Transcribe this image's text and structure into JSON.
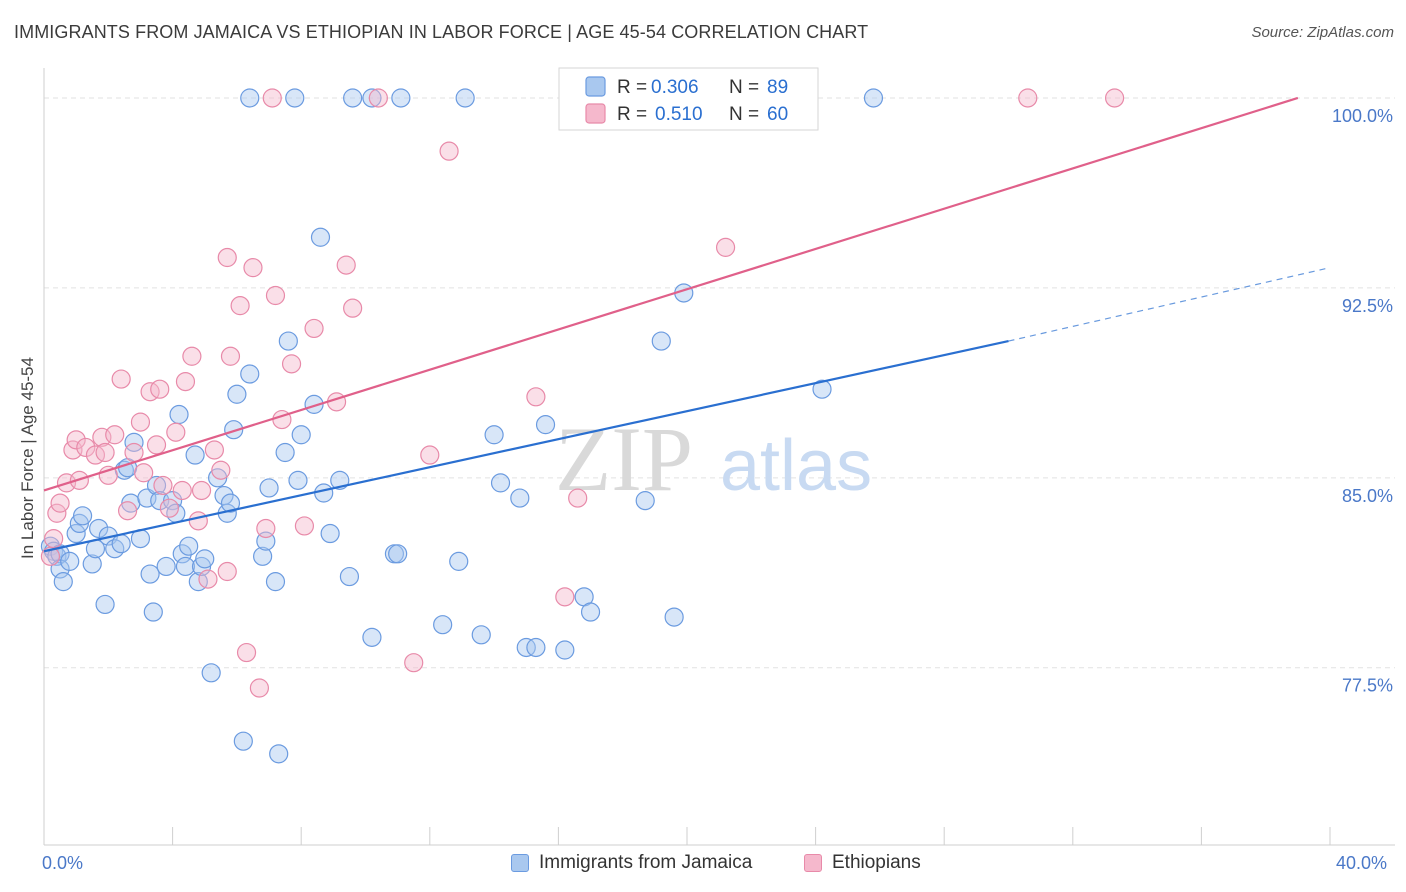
{
  "title": "IMMIGRANTS FROM JAMAICA VS ETHIOPIAN IN LABOR FORCE | AGE 45-54 CORRELATION CHART",
  "source": "Source: ZipAtlas.com",
  "watermark": {
    "zip": "ZIP",
    "atlas": "atlas"
  },
  "colors": {
    "blue_fill": "#a9c8ef",
    "blue_stroke": "#6b9be0",
    "blue_line": "#2a6fd0",
    "pink_fill": "#f5b8cc",
    "pink_stroke": "#e88aa9",
    "pink_line": "#e0608a",
    "axis_text": "#4a78c8",
    "grid": "#dddddd"
  },
  "legend_top": {
    "rows": [
      {
        "r_label": "R =",
        "r_value": "0.306",
        "n_label": "N =",
        "n_value": "89"
      },
      {
        "r_label": "R =",
        "r_value": "0.510",
        "n_label": "N =",
        "n_value": "60"
      }
    ]
  },
  "chart_data": {
    "type": "scatter",
    "title": "IMMIGRANTS FROM JAMAICA VS ETHIOPIAN IN LABOR FORCE | AGE 45-54 CORRELATION CHART",
    "xlabel": "",
    "ylabel": "In Labor Force | Age 45-54",
    "xlim": [
      0,
      40
    ],
    "ylim": [
      70.5,
      101.5
    ],
    "x_tick_labels": [
      "0.0%",
      "40.0%"
    ],
    "y_ticks": [
      77.5,
      85.0,
      92.5,
      100.0
    ],
    "y_tick_labels": [
      "77.5%",
      "85.0%",
      "92.5%",
      "100.0%"
    ],
    "grid": true,
    "legend_position": "top-center",
    "series": [
      {
        "name": "Immigrants from Jamaica",
        "color": "#a9c8ef",
        "trend": {
          "x": [
            0,
            30.0
          ],
          "y": [
            82.1,
            90.4
          ],
          "dashed_to": [
            40.0,
            93.3
          ]
        },
        "points": [
          [
            0.2,
            82.3
          ],
          [
            0.3,
            82.1
          ],
          [
            0.4,
            81.9
          ],
          [
            0.5,
            82.0
          ],
          [
            0.5,
            81.4
          ],
          [
            0.6,
            80.9
          ],
          [
            0.8,
            81.7
          ],
          [
            1.0,
            82.8
          ],
          [
            1.1,
            83.2
          ],
          [
            1.2,
            83.5
          ],
          [
            1.5,
            81.6
          ],
          [
            1.6,
            82.2
          ],
          [
            1.7,
            83.0
          ],
          [
            1.9,
            80.0
          ],
          [
            2.0,
            82.7
          ],
          [
            2.2,
            82.2
          ],
          [
            2.4,
            82.4
          ],
          [
            2.5,
            85.3
          ],
          [
            2.6,
            85.4
          ],
          [
            2.7,
            84.0
          ],
          [
            2.8,
            86.4
          ],
          [
            3.0,
            82.6
          ],
          [
            3.2,
            84.2
          ],
          [
            3.3,
            81.2
          ],
          [
            3.4,
            79.7
          ],
          [
            3.5,
            84.7
          ],
          [
            3.6,
            84.1
          ],
          [
            3.8,
            81.5
          ],
          [
            4.0,
            84.1
          ],
          [
            4.1,
            83.6
          ],
          [
            4.2,
            87.5
          ],
          [
            4.3,
            82.0
          ],
          [
            4.4,
            81.5
          ],
          [
            4.5,
            82.3
          ],
          [
            4.7,
            85.9
          ],
          [
            4.8,
            80.9
          ],
          [
            4.9,
            81.5
          ],
          [
            5.0,
            81.8
          ],
          [
            5.2,
            77.3
          ],
          [
            5.4,
            85.0
          ],
          [
            5.6,
            84.3
          ],
          [
            5.7,
            83.6
          ],
          [
            5.8,
            84.0
          ],
          [
            5.9,
            86.9
          ],
          [
            6.0,
            88.3
          ],
          [
            6.2,
            74.6
          ],
          [
            6.4,
            89.1
          ],
          [
            6.8,
            81.9
          ],
          [
            6.9,
            82.5
          ],
          [
            7.0,
            84.6
          ],
          [
            7.2,
            80.9
          ],
          [
            7.3,
            74.1
          ],
          [
            7.5,
            86.0
          ],
          [
            7.6,
            90.4
          ],
          [
            7.9,
            84.9
          ],
          [
            8.0,
            86.7
          ],
          [
            8.4,
            87.9
          ],
          [
            8.6,
            94.5
          ],
          [
            8.7,
            84.4
          ],
          [
            8.9,
            82.8
          ],
          [
            9.2,
            84.9
          ],
          [
            9.5,
            81.1
          ],
          [
            10.2,
            78.7
          ],
          [
            10.9,
            82.0
          ],
          [
            11.0,
            82.0
          ],
          [
            12.4,
            79.2
          ],
          [
            12.9,
            81.7
          ],
          [
            13.6,
            78.8
          ],
          [
            14.0,
            86.7
          ],
          [
            14.2,
            84.8
          ],
          [
            14.8,
            84.2
          ],
          [
            15.0,
            78.3
          ],
          [
            15.3,
            78.3
          ],
          [
            15.6,
            87.1
          ],
          [
            16.2,
            78.2
          ],
          [
            16.8,
            80.3
          ],
          [
            17.0,
            79.7
          ],
          [
            18.7,
            84.1
          ],
          [
            19.2,
            90.4
          ],
          [
            19.6,
            79.5
          ],
          [
            19.9,
            92.3
          ],
          [
            24.2,
            88.5
          ],
          [
            7.8,
            100.0
          ],
          [
            9.6,
            100.0
          ],
          [
            10.2,
            100.0
          ],
          [
            11.1,
            100.0
          ],
          [
            25.8,
            100.0
          ],
          [
            13.1,
            100.0
          ],
          [
            6.4,
            100.0
          ]
        ]
      },
      {
        "name": "Ethiopians",
        "color": "#f5b8cc",
        "trend": {
          "x": [
            0,
            39.0
          ],
          "y": [
            84.5,
            100.0
          ]
        },
        "points": [
          [
            0.2,
            81.9
          ],
          [
            0.3,
            82.6
          ],
          [
            0.4,
            83.6
          ],
          [
            0.5,
            84.0
          ],
          [
            0.7,
            84.8
          ],
          [
            0.9,
            86.1
          ],
          [
            1.0,
            86.5
          ],
          [
            1.1,
            84.9
          ],
          [
            1.3,
            86.2
          ],
          [
            1.6,
            85.9
          ],
          [
            1.8,
            86.6
          ],
          [
            2.0,
            85.1
          ],
          [
            2.2,
            86.7
          ],
          [
            2.4,
            88.9
          ],
          [
            2.6,
            83.7
          ],
          [
            2.8,
            86.0
          ],
          [
            3.0,
            87.2
          ],
          [
            3.1,
            85.2
          ],
          [
            3.3,
            88.4
          ],
          [
            3.5,
            86.3
          ],
          [
            3.6,
            88.5
          ],
          [
            3.7,
            84.7
          ],
          [
            3.9,
            83.8
          ],
          [
            4.1,
            86.8
          ],
          [
            4.3,
            84.5
          ],
          [
            4.4,
            88.8
          ],
          [
            4.6,
            89.8
          ],
          [
            4.8,
            83.3
          ],
          [
            4.9,
            84.5
          ],
          [
            5.1,
            81.0
          ],
          [
            5.3,
            86.1
          ],
          [
            5.5,
            85.3
          ],
          [
            5.7,
            93.7
          ],
          [
            5.8,
            89.8
          ],
          [
            6.1,
            91.8
          ],
          [
            6.3,
            78.1
          ],
          [
            6.5,
            93.3
          ],
          [
            6.7,
            76.7
          ],
          [
            6.9,
            83.0
          ],
          [
            7.2,
            92.2
          ],
          [
            7.4,
            87.3
          ],
          [
            7.7,
            89.5
          ],
          [
            8.1,
            83.1
          ],
          [
            8.4,
            90.9
          ],
          [
            9.1,
            88.0
          ],
          [
            9.4,
            93.4
          ],
          [
            9.6,
            91.7
          ],
          [
            11.5,
            77.7
          ],
          [
            12.0,
            85.9
          ],
          [
            12.6,
            97.9
          ],
          [
            15.3,
            88.2
          ],
          [
            16.2,
            80.3
          ],
          [
            16.6,
            84.2
          ],
          [
            21.2,
            94.1
          ],
          [
            7.1,
            100.0
          ],
          [
            10.4,
            100.0
          ],
          [
            30.6,
            100.0
          ],
          [
            33.3,
            100.0
          ],
          [
            1.9,
            86.0
          ],
          [
            5.7,
            81.3
          ]
        ]
      }
    ]
  }
}
